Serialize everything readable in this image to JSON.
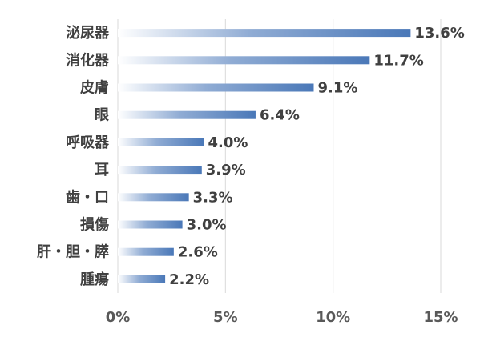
{
  "chart_data": {
    "type": "bar",
    "orientation": "horizontal",
    "categories": [
      "泌尿器",
      "消化器",
      "皮膚",
      "眼",
      "呼吸器",
      "耳",
      "歯・口",
      "損傷",
      "肝・胆・膵",
      "腫瘍"
    ],
    "values": [
      13.6,
      11.7,
      9.1,
      6.4,
      4.0,
      3.9,
      3.3,
      3.0,
      2.6,
      2.2
    ],
    "value_labels": [
      "13.6%",
      "11.7%",
      "9.1%",
      "6.4%",
      "4.0%",
      "3.9%",
      "3.3%",
      "3.0%",
      "2.6%",
      "2.2%"
    ],
    "xlim": [
      0,
      15
    ],
    "xticks": [
      0,
      5,
      10,
      15
    ],
    "xtick_labels": [
      "0%",
      "5%",
      "10%",
      "15%"
    ],
    "grid": true,
    "bar_color": "#4a78b8",
    "bar_fade_color": "#ffffff"
  }
}
